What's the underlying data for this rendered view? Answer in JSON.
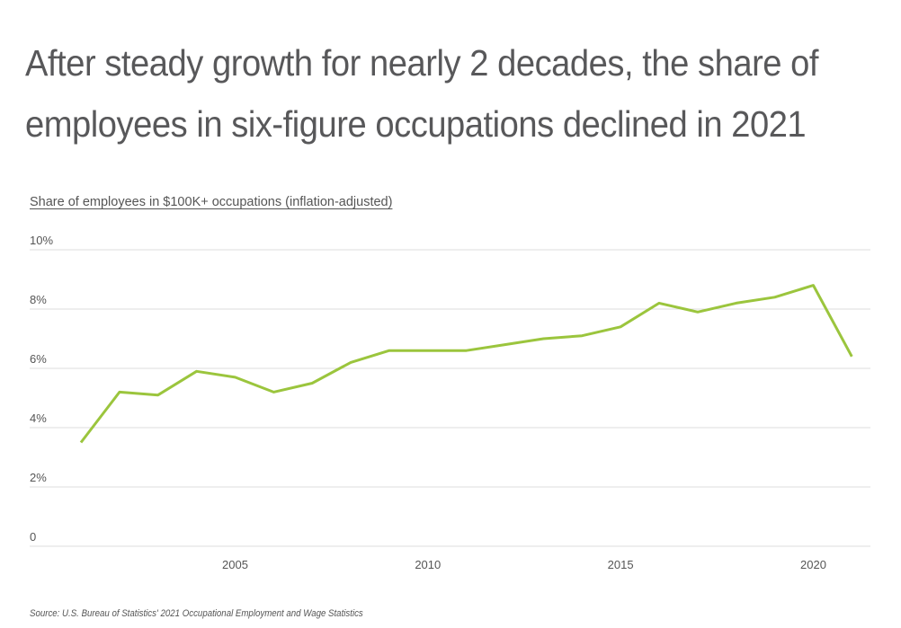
{
  "chart_data": {
    "type": "line",
    "title": "After steady growth for nearly 2 decades, the share of employees in six-figure occupations declined in 2021",
    "subtitle": "Share of employees in $100K+ occupations (inflation-adjusted)",
    "source": "Source:  U.S. Bureau of Statistics' 2021 Occupational Employment and Wage Statistics",
    "xlabel": "",
    "ylabel": "",
    "x": [
      2001,
      2002,
      2003,
      2004,
      2005,
      2006,
      2007,
      2008,
      2009,
      2010,
      2011,
      2012,
      2013,
      2014,
      2015,
      2016,
      2017,
      2018,
      2019,
      2020,
      2021
    ],
    "series": [
      {
        "name": "Share of employees in $100K+ occupations",
        "color": "#9bc53d",
        "values": [
          3.5,
          5.2,
          5.1,
          5.9,
          5.7,
          5.2,
          5.5,
          6.2,
          6.6,
          6.6,
          6.6,
          6.8,
          7.0,
          7.1,
          7.4,
          8.2,
          7.9,
          8.2,
          8.4,
          8.8,
          6.4
        ]
      }
    ],
    "ylim": [
      0,
      10
    ],
    "xlim": [
      2000.5,
      2022.4
    ],
    "y_ticks": [
      0,
      2,
      4,
      6,
      8,
      10
    ],
    "y_tick_labels": [
      "0",
      "2%",
      "4%",
      "6%",
      "8%",
      "10%"
    ],
    "x_ticks": [
      2005,
      2010,
      2015,
      2020
    ],
    "x_tick_labels": [
      "2005",
      "2010",
      "2015",
      "2020"
    ],
    "grid": true,
    "gridline_color": "#dddddd",
    "legend": "none"
  }
}
